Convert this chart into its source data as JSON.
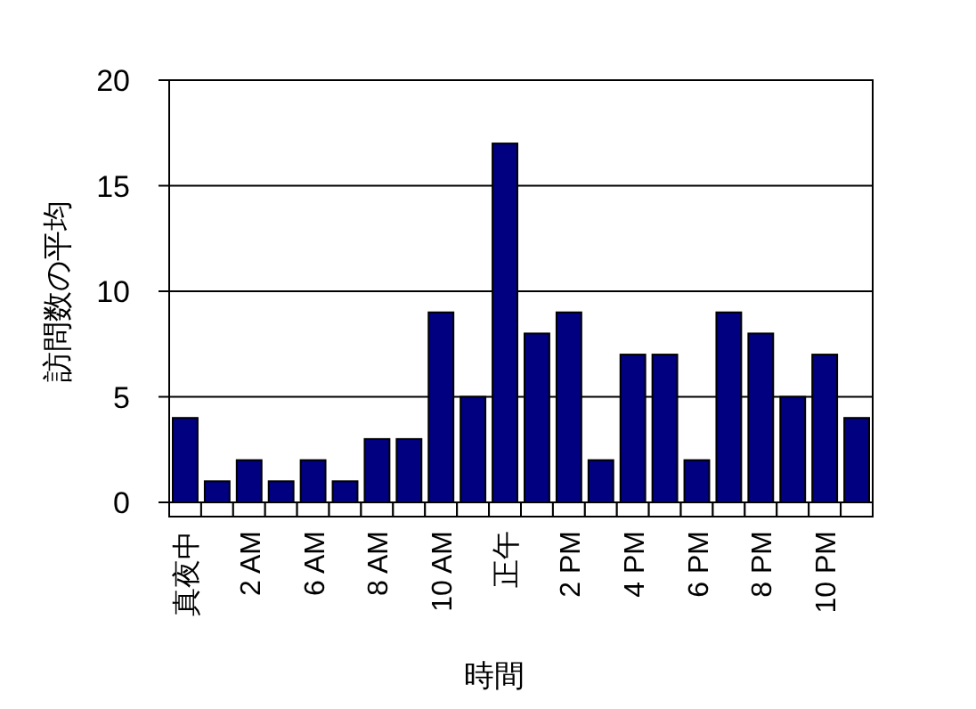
{
  "chart_data": {
    "type": "bar",
    "xlabel": "時間",
    "ylabel": "訪問数の平均",
    "categories": [
      "真夜中",
      null,
      "2 AM",
      null,
      "6 AM",
      null,
      "8 AM",
      null,
      "10 AM",
      null,
      "正午",
      null,
      "2 PM",
      null,
      "4 PM",
      null,
      "6 PM",
      null,
      "8 PM",
      null,
      "10 PM",
      null
    ],
    "values": [
      4,
      1,
      2,
      1,
      2,
      1,
      3,
      3,
      9,
      5,
      17,
      8,
      9,
      2,
      7,
      7,
      2,
      9,
      8,
      5,
      7,
      4
    ],
    "color": "#000080",
    "ylim": [
      0,
      20
    ],
    "yticks": [
      0,
      5,
      10,
      15,
      20
    ],
    "grid": "y"
  }
}
